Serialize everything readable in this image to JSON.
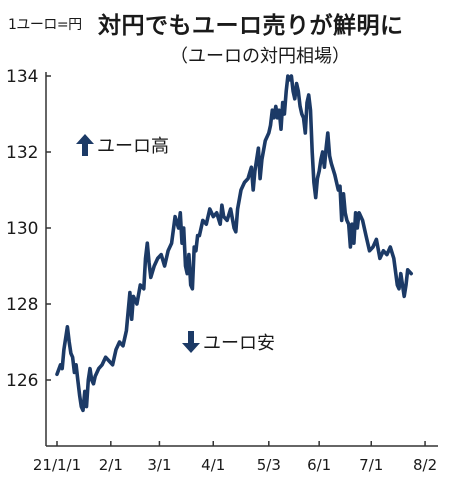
{
  "header": {
    "unit": "1ユーロ=円",
    "title": "対円でもユーロ売りが鮮明に",
    "subtitle": "（ユーロの対円相場）"
  },
  "annotations": {
    "up": "ユーロ高",
    "down": "ユーロ安"
  },
  "colors": {
    "line": "#1c3a66",
    "text": "#1a1a1a",
    "axis": "#333333"
  },
  "chart_data": {
    "type": "line",
    "title": "対円でもユーロ売りが鮮明に",
    "subtitle": "（ユーロの対円相場）",
    "ylabel": "1ユーロ=円",
    "ylim": [
      124.6,
      135.2
    ],
    "yticks": [
      126,
      128,
      130,
      132,
      134
    ],
    "xlim": [
      0,
      216
    ],
    "xticks": [
      {
        "day": 0,
        "label": "21/1/1"
      },
      {
        "day": 31,
        "label": "2/1"
      },
      {
        "day": 59,
        "label": "3/1"
      },
      {
        "day": 90,
        "label": "4/1"
      },
      {
        "day": 122,
        "label": "5/3"
      },
      {
        "day": 151,
        "label": "6/1"
      },
      {
        "day": 181,
        "label": "7/1"
      },
      {
        "day": 212,
        "label": "8/2"
      }
    ],
    "series": [
      {
        "points": [
          [
            0,
            126.15
          ],
          [
            2,
            126.4
          ],
          [
            3,
            126.3
          ],
          [
            4,
            126.8
          ],
          [
            6,
            127.4
          ],
          [
            7,
            127.0
          ],
          [
            8,
            126.7
          ],
          [
            9,
            126.6
          ],
          [
            10,
            126.2
          ],
          [
            11,
            126.4
          ],
          [
            12,
            126.0
          ],
          [
            13,
            125.6
          ],
          [
            14,
            125.3
          ],
          [
            15,
            125.2
          ],
          [
            16,
            125.7
          ],
          [
            17,
            125.3
          ],
          [
            18,
            126.0
          ],
          [
            19,
            126.3
          ],
          [
            20,
            126.0
          ],
          [
            21,
            125.9
          ],
          [
            22,
            126.1
          ],
          [
            24,
            126.3
          ],
          [
            26,
            126.4
          ],
          [
            28,
            126.6
          ],
          [
            30,
            126.5
          ],
          [
            32,
            126.4
          ],
          [
            34,
            126.8
          ],
          [
            36,
            127.0
          ],
          [
            38,
            126.9
          ],
          [
            40,
            127.3
          ],
          [
            42,
            128.3
          ],
          [
            43,
            127.6
          ],
          [
            44,
            128.2
          ],
          [
            46,
            128.0
          ],
          [
            48,
            128.5
          ],
          [
            50,
            128.4
          ],
          [
            51,
            129.2
          ],
          [
            52,
            129.6
          ],
          [
            53,
            129.1
          ],
          [
            54,
            128.7
          ],
          [
            56,
            129.0
          ],
          [
            58,
            129.2
          ],
          [
            60,
            129.3
          ],
          [
            62,
            129.0
          ],
          [
            64,
            129.4
          ],
          [
            66,
            129.6
          ],
          [
            68,
            130.3
          ],
          [
            70,
            130.0
          ],
          [
            71,
            130.4
          ],
          [
            72,
            129.6
          ],
          [
            73,
            130.0
          ],
          [
            74,
            129.0
          ],
          [
            75,
            128.8
          ],
          [
            76,
            129.3
          ],
          [
            77,
            128.5
          ],
          [
            78,
            128.4
          ],
          [
            79,
            129.5
          ],
          [
            80,
            129.4
          ],
          [
            81,
            129.8
          ],
          [
            82,
            129.8
          ],
          [
            84,
            130.2
          ],
          [
            86,
            130.1
          ],
          [
            88,
            130.5
          ],
          [
            90,
            130.3
          ],
          [
            92,
            130.4
          ],
          [
            94,
            130.1
          ],
          [
            95,
            130.6
          ],
          [
            96,
            130.3
          ],
          [
            98,
            130.2
          ],
          [
            100,
            130.5
          ],
          [
            102,
            130.0
          ],
          [
            103,
            129.9
          ],
          [
            104,
            130.5
          ],
          [
            106,
            131.0
          ],
          [
            108,
            131.2
          ],
          [
            110,
            131.3
          ],
          [
            112,
            131.6
          ],
          [
            113,
            131.0
          ],
          [
            114,
            131.5
          ],
          [
            116,
            132.1
          ],
          [
            117,
            131.3
          ],
          [
            118,
            131.8
          ],
          [
            120,
            132.3
          ],
          [
            122,
            132.5
          ],
          [
            123,
            132.7
          ],
          [
            124,
            133.1
          ],
          [
            125,
            132.9
          ],
          [
            126,
            133.2
          ],
          [
            127,
            132.9
          ],
          [
            128,
            133.1
          ],
          [
            129,
            132.6
          ],
          [
            130,
            133.3
          ],
          [
            131,
            133.0
          ],
          [
            132,
            133.6
          ],
          [
            133,
            134.0
          ],
          [
            134,
            133.9
          ],
          [
            135,
            134.0
          ],
          [
            136,
            133.6
          ],
          [
            137,
            133.4
          ],
          [
            138,
            133.8
          ],
          [
            139,
            133.6
          ],
          [
            140,
            133.2
          ],
          [
            141,
            133.0
          ],
          [
            142,
            132.9
          ],
          [
            143,
            132.5
          ],
          [
            144,
            133.3
          ],
          [
            145,
            133.5
          ],
          [
            146,
            133.1
          ],
          [
            147,
            132.0
          ],
          [
            148,
            131.2
          ],
          [
            149,
            130.8
          ],
          [
            150,
            131.3
          ],
          [
            151,
            131.5
          ],
          [
            152,
            131.8
          ],
          [
            153,
            132.0
          ],
          [
            154,
            131.6
          ],
          [
            155,
            132.1
          ],
          [
            156,
            132.5
          ],
          [
            157,
            131.9
          ],
          [
            158,
            131.7
          ],
          [
            160,
            131.4
          ],
          [
            162,
            131.0
          ],
          [
            163,
            131.1
          ],
          [
            164,
            130.2
          ],
          [
            165,
            130.9
          ],
          [
            166,
            130.4
          ],
          [
            167,
            130.2
          ],
          [
            168,
            130.1
          ],
          [
            169,
            129.5
          ],
          [
            170,
            130.1
          ],
          [
            171,
            129.6
          ],
          [
            172,
            130.4
          ],
          [
            173,
            130.0
          ],
          [
            174,
            130.4
          ],
          [
            176,
            130.2
          ],
          [
            178,
            129.8
          ],
          [
            180,
            129.4
          ],
          [
            182,
            129.5
          ],
          [
            184,
            129.7
          ],
          [
            186,
            129.2
          ],
          [
            188,
            129.4
          ],
          [
            190,
            129.3
          ],
          [
            192,
            129.5
          ],
          [
            194,
            129.2
          ],
          [
            196,
            128.5
          ],
          [
            197,
            128.4
          ],
          [
            198,
            128.8
          ],
          [
            200,
            128.2
          ],
          [
            201,
            128.5
          ],
          [
            202,
            128.9
          ],
          [
            204,
            128.8
          ]
        ]
      }
    ],
    "grid": false,
    "legend": "none"
  }
}
